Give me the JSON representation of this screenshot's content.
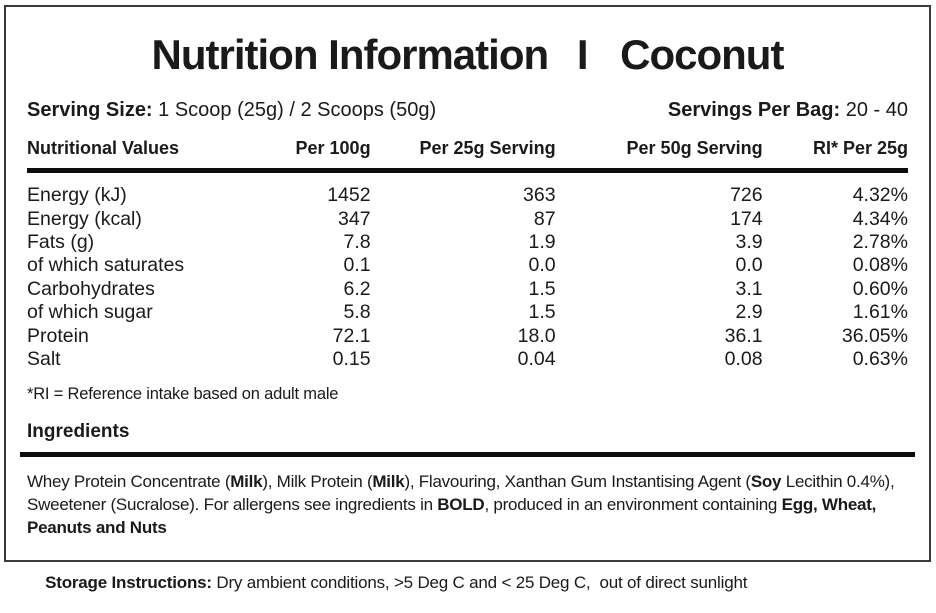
{
  "label": {
    "title": {
      "left": "Nutrition Information",
      "separator": "I",
      "right": "Coconut"
    },
    "serving": {
      "size_label": "Serving Size:",
      "size_value": " 1 Scoop (25g) / 2 Scoops (50g)",
      "per_bag_label": "Servings Per Bag:",
      "per_bag_value": " 20 - 40"
    },
    "table": {
      "headers": [
        "Nutritional Values",
        "Per 100g",
        "Per 25g Serving",
        "Per 50g Serving",
        "RI* Per 25g"
      ],
      "rows": [
        {
          "name": "Energy (kJ)",
          "per_100g": "1452",
          "per_25g": "363",
          "per_50g": "726",
          "ri": "4.32%"
        },
        {
          "name": "Energy (kcal)",
          "per_100g": "347",
          "per_25g": "87",
          "per_50g": "174",
          "ri": "4.34%"
        },
        {
          "name": "Fats (g)",
          "per_100g": "7.8",
          "per_25g": "1.9",
          "per_50g": "3.9",
          "ri": "2.78%"
        },
        {
          "name": "of which saturates",
          "per_100g": "0.1",
          "per_25g": "0.0",
          "per_50g": "0.0",
          "ri": "0.08%"
        },
        {
          "name": "Carbohydrates",
          "per_100g": "6.2",
          "per_25g": "1.5",
          "per_50g": "3.1",
          "ri": "0.60%"
        },
        {
          "name": "of which sugar",
          "per_100g": "5.8",
          "per_25g": "1.5",
          "per_50g": "2.9",
          "ri": "1.61%"
        },
        {
          "name": "Protein",
          "per_100g": "72.1",
          "per_25g": "18.0",
          "per_50g": "36.1",
          "ri": "36.05%"
        },
        {
          "name": "Salt",
          "per_100g": "0.15",
          "per_25g": "0.04",
          "per_50g": "0.08",
          "ri": "0.63%"
        }
      ]
    },
    "footnote": "*RI = Reference intake based on adult male",
    "ingredients": {
      "heading": "Ingredients",
      "parts": [
        {
          "text": "Whey Protein Concentrate (",
          "bold": false
        },
        {
          "text": "Milk",
          "bold": true
        },
        {
          "text": "), Milk Protein (",
          "bold": false
        },
        {
          "text": "Milk",
          "bold": true
        },
        {
          "text": "), Flavouring, Xanthan Gum Instantising Agent (",
          "bold": false
        },
        {
          "text": "Soy",
          "bold": true
        },
        {
          "text": " Lecithin 0.4%), Sweetener (Sucralose). For allergens see ingredients in ",
          "bold": false
        },
        {
          "text": "BOLD",
          "bold": true
        },
        {
          "text": ", produced in an environment containing ",
          "bold": false
        },
        {
          "text": "Egg, Wheat, Peanuts and Nuts",
          "bold": true
        }
      ]
    },
    "storage": {
      "label": "Storage Instructions:",
      "text": " Dry ambient conditions, >5 Deg C and < 25 Deg C,  out of direct sunlight"
    },
    "colors": {
      "background": "#ffffff",
      "border": "#3a3a3a",
      "rule": "#0d0d0d",
      "text": "#1a1a1a"
    }
  }
}
